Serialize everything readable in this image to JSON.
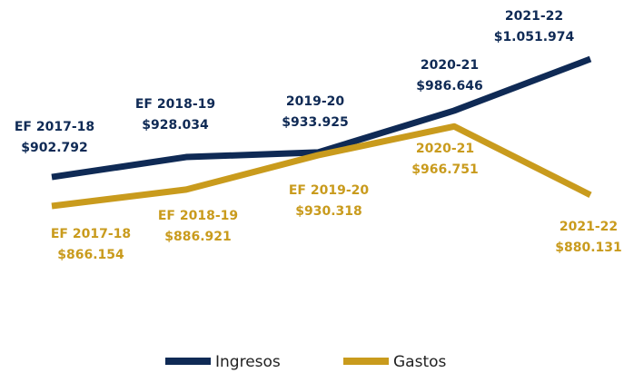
{
  "chart_data": {
    "type": "line",
    "series": [
      {
        "name": "Ingresos",
        "color": "#0f2a55",
        "categories": [
          "EF 2017-18",
          "EF 2018-19",
          "2019-20",
          "2020-21",
          "2021-22"
        ],
        "values": [
          902792,
          928034,
          933925,
          986646,
          1051974
        ],
        "value_labels": [
          "$902.792",
          "$928.034",
          "$933.925",
          "$986.646",
          "$1.051.974"
        ]
      },
      {
        "name": "Gastos",
        "color": "#c99b1d",
        "categories": [
          "EF 2017-18",
          "EF 2018-19",
          "EF 2019-20",
          "2020-21",
          "2021-22"
        ],
        "values": [
          866154,
          886921,
          930318,
          966751,
          880131
        ],
        "value_labels": [
          "$866.154",
          "$886.921",
          "$930.318",
          "$966.751",
          "$880.131"
        ]
      }
    ]
  }
}
